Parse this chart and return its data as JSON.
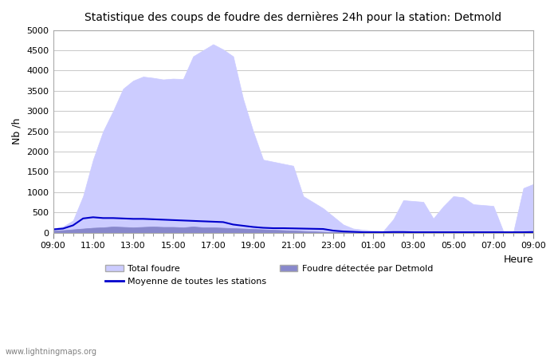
{
  "title": "Statistique des coups de foudre des dernières 24h pour la station: Detmold",
  "xlabel": "Heure",
  "ylabel": "Nb /h",
  "xlim": [
    0,
    24
  ],
  "ylim": [
    0,
    5000
  ],
  "yticks": [
    0,
    500,
    1000,
    1500,
    2000,
    2500,
    3000,
    3500,
    4000,
    4500,
    5000
  ],
  "xtick_labels": [
    "09:00",
    "11:00",
    "13:00",
    "15:00",
    "17:00",
    "19:00",
    "21:00",
    "23:00",
    "01:00",
    "03:00",
    "05:00",
    "07:00",
    "09:00"
  ],
  "bg_color": "#ffffff",
  "plot_bg_color": "#ffffff",
  "grid_color": "#cccccc",
  "total_foudre_color": "#ccccff",
  "total_foudre_edge": "#aaaadd",
  "detmold_color": "#8888cc",
  "detmold_edge": "#6666aa",
  "moyenne_color": "#0000cc",
  "watermark": "www.lightningmaps.org",
  "x_hours": [
    0,
    0.5,
    1,
    1.5,
    2,
    2.5,
    3,
    3.5,
    4,
    4.5,
    5,
    5.5,
    6,
    6.5,
    7,
    7.5,
    8,
    8.5,
    9,
    9.5,
    10,
    10.5,
    11,
    11.5,
    12,
    12.5,
    13,
    13.5,
    14,
    14.5,
    15,
    15.5,
    16,
    16.5,
    17,
    17.5,
    18,
    18.5,
    19,
    19.5,
    20,
    20.5,
    21,
    21.5,
    22,
    22.5,
    23,
    23.5,
    24
  ],
  "total_foudre_values": [
    100,
    150,
    300,
    900,
    1800,
    2500,
    3000,
    3550,
    3750,
    3850,
    3820,
    3780,
    3800,
    3790,
    4350,
    4500,
    4650,
    4520,
    4350,
    3300,
    2500,
    1800,
    1750,
    1700,
    1650,
    900,
    750,
    600,
    400,
    200,
    100,
    70,
    50,
    40,
    330,
    800,
    780,
    760,
    350,
    650,
    900,
    870,
    700,
    680,
    660,
    30,
    20,
    1100,
    1200
  ],
  "detmold_values": [
    50,
    60,
    80,
    100,
    120,
    130,
    150,
    140,
    130,
    140,
    150,
    140,
    140,
    130,
    150,
    130,
    130,
    120,
    110,
    100,
    90,
    80,
    70,
    60,
    50,
    40,
    30,
    20,
    10,
    10,
    8,
    5,
    5,
    5,
    5,
    5,
    5,
    5,
    5,
    5,
    5,
    5,
    5,
    5,
    5,
    5,
    5,
    10,
    15
  ],
  "moyenne_values": [
    80,
    100,
    180,
    350,
    380,
    360,
    360,
    350,
    340,
    340,
    330,
    320,
    310,
    300,
    290,
    280,
    270,
    260,
    200,
    170,
    140,
    120,
    110,
    110,
    105,
    100,
    95,
    90,
    50,
    30,
    20,
    10,
    10,
    10,
    15,
    15,
    10,
    10,
    10,
    10,
    10,
    10,
    10,
    10,
    10,
    10,
    10,
    10,
    15
  ]
}
